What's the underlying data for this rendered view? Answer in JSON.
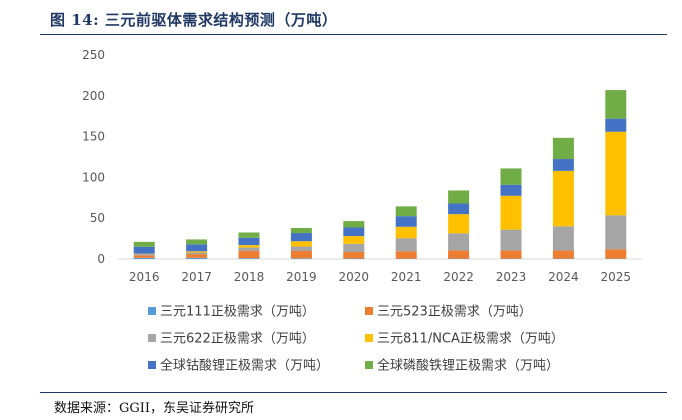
{
  "title": "图 14:  三元前驱体需求结构预测（万吨）",
  "source": "数据来源：GGII，东吴证券研究所",
  "chart_data": {
    "type": "bar",
    "stacked": true,
    "categories": [
      "2016",
      "2017",
      "2018",
      "2019",
      "2020",
      "2021",
      "2022",
      "2023",
      "2024",
      "2025"
    ],
    "ylim": [
      0,
      250
    ],
    "yticks": [
      "0",
      "50",
      "100",
      "150",
      "200",
      "250"
    ],
    "grid": false,
    "legend": "bottom",
    "series": [
      {
        "name": "三元111正极需求（万吨）",
        "color": "#5b9bd5",
        "values": [
          1.5,
          1.5,
          1.0,
          0.8,
          0.6,
          0.5,
          0.5,
          0.5,
          0.5,
          0.5
        ]
      },
      {
        "name": "三元523正极需求（万吨）",
        "color": "#ed7d31",
        "values": [
          3.0,
          4.5,
          9.0,
          9.0,
          8.0,
          9.0,
          10.0,
          10.0,
          10.0,
          11.5
        ]
      },
      {
        "name": "三元622正极需求（万吨）",
        "color": "#a5a5a5",
        "values": [
          1.5,
          2.0,
          4.0,
          5.5,
          10.0,
          16.0,
          21.0,
          25.5,
          29.5,
          41.5
        ]
      },
      {
        "name": "三元811/NCA正极需求（万吨）",
        "color": "#ffc000",
        "values": [
          0.5,
          1.5,
          3.0,
          6.5,
          9.5,
          14.0,
          23.5,
          41.5,
          68.0,
          102.5
        ]
      },
      {
        "name": "全球钴酸锂正极需求（万吨）",
        "color": "#4472c4",
        "values": [
          8.5,
          8.5,
          9.0,
          10.0,
          10.5,
          13.0,
          13.0,
          13.5,
          14.5,
          16.0
        ]
      },
      {
        "name": "全球磷酸铁锂正极需求（万吨）",
        "color": "#70ad47",
        "values": [
          6.0,
          6.0,
          6.5,
          6.2,
          7.9,
          12.0,
          16.0,
          20.0,
          26.0,
          35.0
        ]
      }
    ]
  }
}
